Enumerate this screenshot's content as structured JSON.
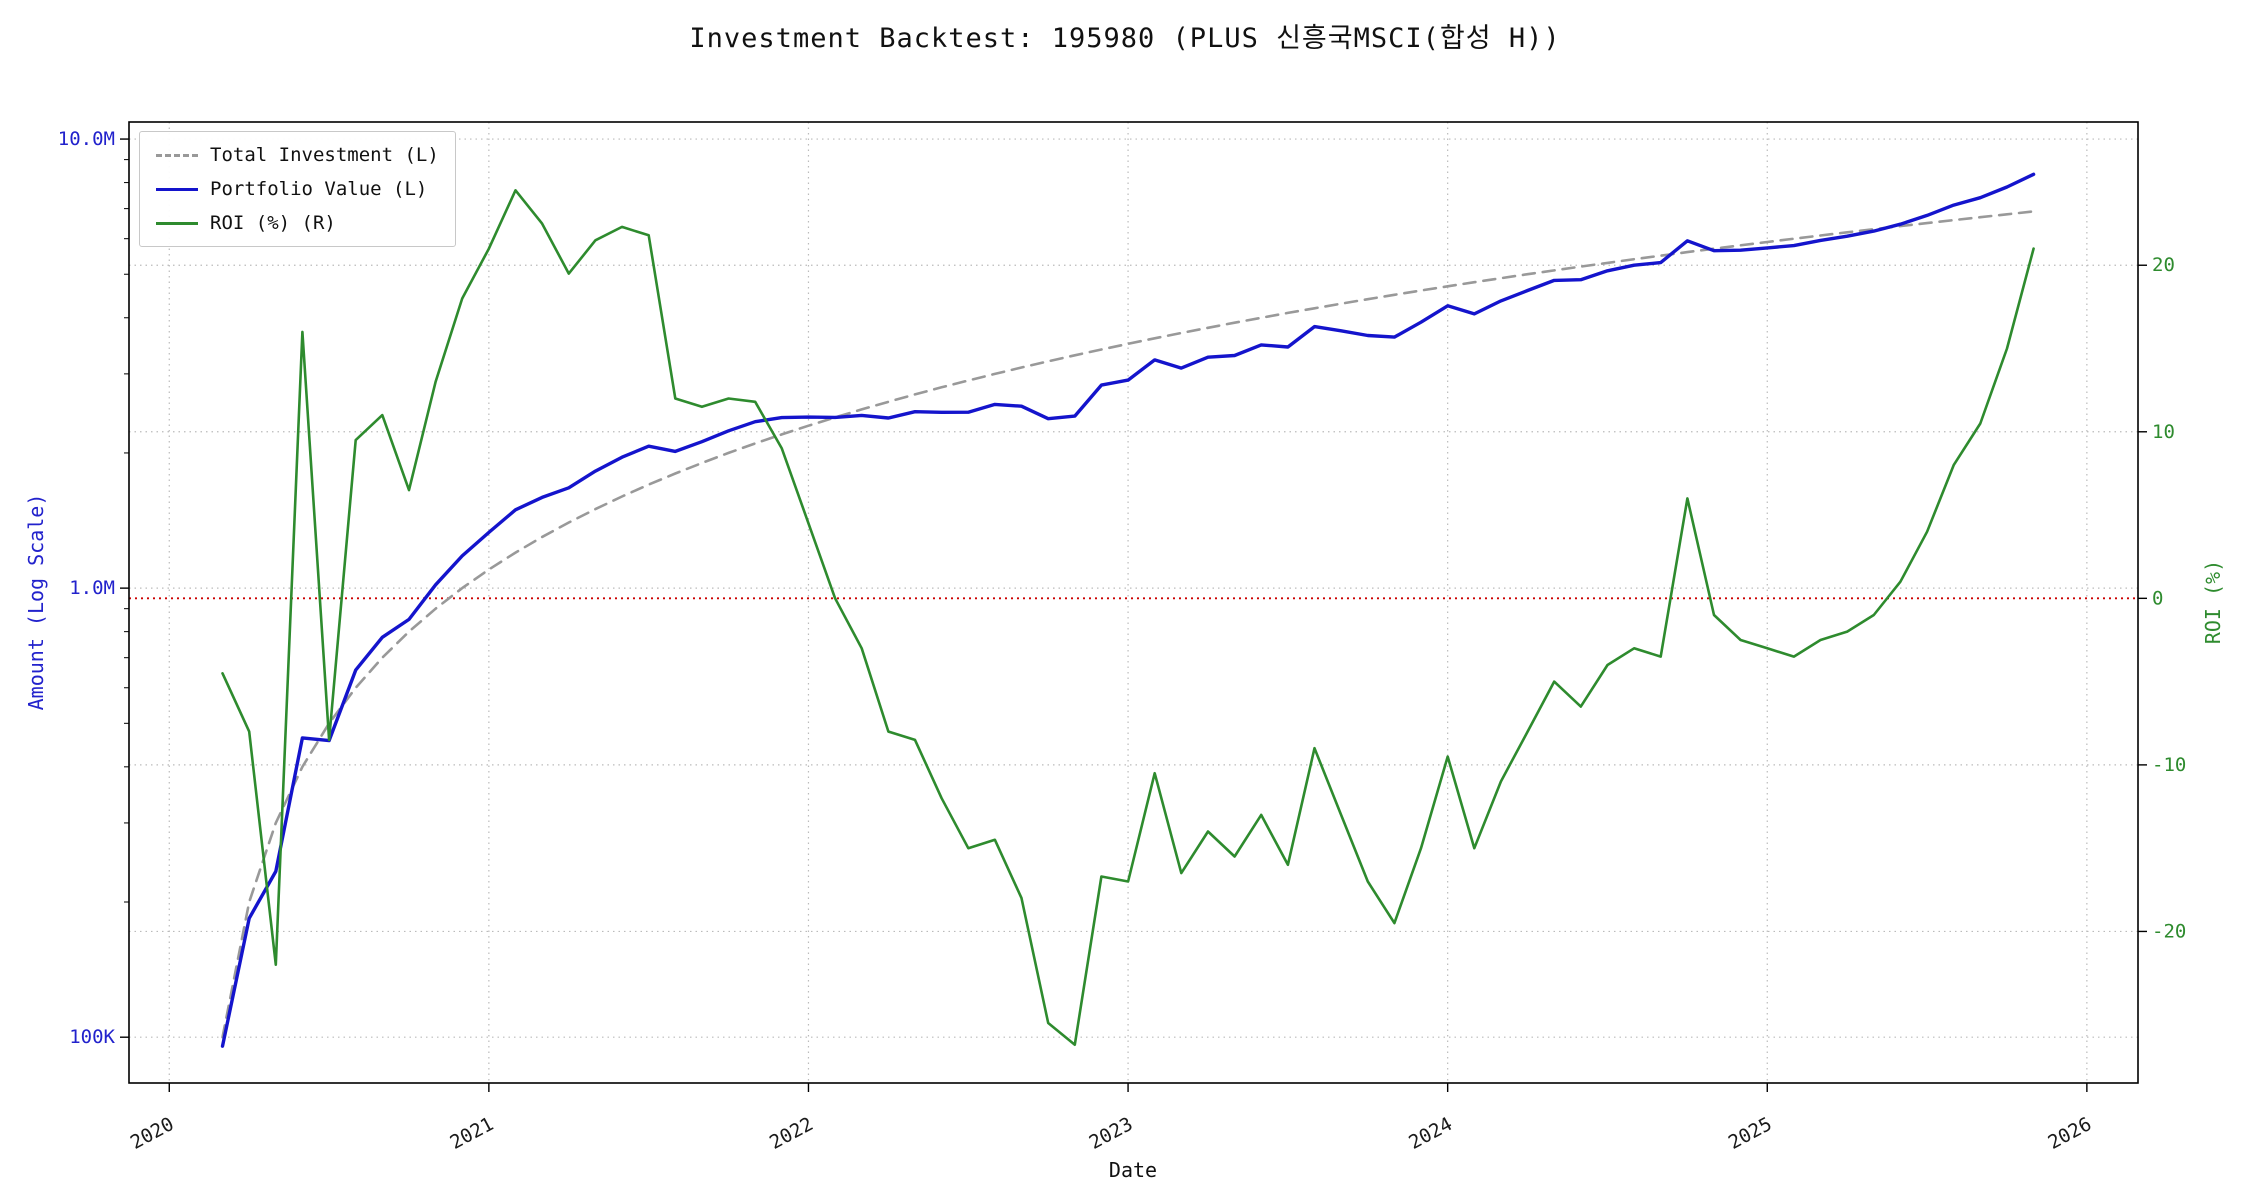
{
  "colors": {
    "left_axis_text": "#2222cc",
    "right_axis_text": "#2e8b2e",
    "grid": "#bbbbbb",
    "spine": "#000000",
    "tick_label": "#1a1a1a"
  },
  "chart_data": {
    "type": "line",
    "title": "Investment Backtest: 195980 (PLUS 신흥국MSCI(합성 H))",
    "xlabel": "Date",
    "ylabel_left": "Amount (Log Scale)",
    "ylabel_right": "ROI (%)",
    "legend_position": "upper-left",
    "grid": true,
    "x_tick_labels": [
      "2020",
      "2021",
      "2022",
      "2023",
      "2024",
      "2025",
      "2026"
    ],
    "left_ticks": [
      {
        "value": 10000000,
        "label": "10.0M"
      },
      {
        "value": 1000000,
        "label": "1.0M"
      },
      {
        "value": 100000,
        "label": "100K"
      }
    ],
    "right_ticks": [
      {
        "value": 20,
        "label": "20"
      },
      {
        "value": 10,
        "label": "10"
      },
      {
        "value": 0,
        "label": "0"
      },
      {
        "value": -10,
        "label": "-10"
      },
      {
        "value": -20,
        "label": "-20"
      }
    ],
    "x_range_years": [
      2019.874,
      2026.16
    ],
    "left_log10_range": [
      4.898,
      7.038
    ],
    "right_range": [
      -29.1,
      28.6
    ],
    "zero_line": {
      "axis": "right",
      "value": 0,
      "color": "#cc0000"
    },
    "monthly_contribution": 100000,
    "months": [
      "2020-03",
      "2020-04",
      "2020-05",
      "2020-06",
      "2020-07",
      "2020-08",
      "2020-09",
      "2020-10",
      "2020-11",
      "2020-12",
      "2021-01",
      "2021-02",
      "2021-03",
      "2021-04",
      "2021-05",
      "2021-06",
      "2021-07",
      "2021-08",
      "2021-09",
      "2021-10",
      "2021-11",
      "2021-12",
      "2022-01",
      "2022-02",
      "2022-03",
      "2022-04",
      "2022-05",
      "2022-06",
      "2022-07",
      "2022-08",
      "2022-09",
      "2022-10",
      "2022-11",
      "2022-12",
      "2023-01",
      "2023-02",
      "2023-03",
      "2023-04",
      "2023-05",
      "2023-06",
      "2023-07",
      "2023-08",
      "2023-09",
      "2023-10",
      "2023-11",
      "2023-12",
      "2024-01",
      "2024-02",
      "2024-03",
      "2024-04",
      "2024-05",
      "2024-06",
      "2024-07",
      "2024-08",
      "2024-09",
      "2024-10",
      "2024-11",
      "2024-12",
      "2025-01",
      "2025-02",
      "2025-03",
      "2025-04",
      "2025-05",
      "2025-06",
      "2025-07",
      "2025-08",
      "2025-09",
      "2025-10",
      "2025-11"
    ],
    "series": [
      {
        "name": "Total Investment (L)",
        "axis": "left",
        "color": "#999999",
        "style": "dashed",
        "values": [
          100000,
          200000,
          300000,
          400000,
          500000,
          600000,
          700000,
          800000,
          900000,
          1000000,
          1100000,
          1200000,
          1300000,
          1400000,
          1500000,
          1600000,
          1700000,
          1800000,
          1900000,
          2000000,
          2100000,
          2200000,
          2300000,
          2400000,
          2500000,
          2600000,
          2700000,
          2800000,
          2900000,
          3000000,
          3100000,
          3200000,
          3300000,
          3400000,
          3500000,
          3600000,
          3700000,
          3800000,
          3900000,
          4000000,
          4100000,
          4200000,
          4300000,
          4400000,
          4500000,
          4600000,
          4700000,
          4800000,
          4900000,
          5000000,
          5100000,
          5200000,
          5300000,
          5400000,
          5500000,
          5600000,
          5700000,
          5800000,
          5900000,
          6000000,
          6100000,
          6200000,
          6300000,
          6400000,
          6500000,
          6600000,
          6700000,
          6800000,
          6900000
        ]
      },
      {
        "name": "Portfolio Value (L)",
        "axis": "left",
        "color": "#1414cc",
        "style": "solid",
        "values": [
          95500,
          184000,
          234000,
          464000,
          457500,
          657000,
          777000,
          852000,
          1017000,
          1180000,
          1331000,
          1494000,
          1592500,
          1673000,
          1822500,
          1956800,
          2070600,
          2016000,
          2118500,
          2240000,
          2347800,
          2398000,
          2403500,
          2400000,
          2425000,
          2392000,
          2470500,
          2464000,
          2465000,
          2565000,
          2542000,
          2384000,
          2415600,
          2832200,
          2905000,
          3222000,
          3089500,
          3268000,
          3295500,
          3480000,
          3444000,
          3822000,
          3741000,
          3652000,
          3622500,
          3910000,
          4253500,
          4080000,
          4361000,
          4600000,
          4845000,
          4862000,
          5088000,
          5238000,
          5307500,
          5936000,
          5643000,
          5655000,
          5723000,
          5790000,
          5947500,
          6076000,
          6237000,
          6464000,
          6760000,
          7128000,
          7403500,
          7820000,
          8349000
        ]
      },
      {
        "name": "ROI (%) (R)",
        "axis": "right",
        "color": "#2e8b2e",
        "style": "solid",
        "values": [
          -4.5,
          -8,
          -22,
          16,
          -8.5,
          9.5,
          11,
          6.5,
          13,
          18,
          21,
          24.5,
          22.5,
          19.5,
          21.5,
          22.3,
          21.8,
          12,
          11.5,
          12,
          11.8,
          9,
          4.5,
          0,
          -3,
          -8,
          -8.5,
          -12,
          -15,
          -14.5,
          -18,
          -25.5,
          -26.8,
          -16.7,
          -17,
          -10.5,
          -16.5,
          -14,
          -15.5,
          -13,
          -16,
          -9,
          -13,
          -17,
          -19.5,
          -15,
          -9.5,
          -15,
          -11,
          -8,
          -5,
          -6.5,
          -4,
          -3,
          -3.5,
          6,
          -1,
          -2.5,
          -3,
          -3.5,
          -2.5,
          -2,
          -1,
          1,
          4,
          8,
          10.5,
          15,
          21
        ]
      }
    ]
  }
}
